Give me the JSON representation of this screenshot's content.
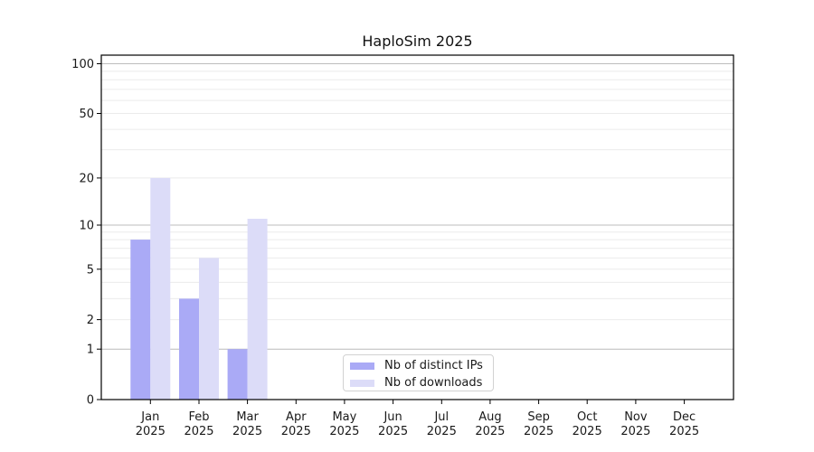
{
  "figure": {
    "title": "HaploSim 2025"
  },
  "chart_data": {
    "type": "bar",
    "title": "HaploSim 2025",
    "categories": [
      "Jan",
      "Feb",
      "Mar",
      "Apr",
      "May",
      "Jun",
      "Jul",
      "Aug",
      "Sep",
      "Oct",
      "Nov",
      "Dec"
    ],
    "year_label": "2025",
    "series": [
      {
        "name": "Nb of distinct IPs",
        "color": "#aaaaf6",
        "values": [
          8,
          3,
          1,
          0,
          0,
          0,
          0,
          0,
          0,
          0,
          0,
          0
        ]
      },
      {
        "name": "Nb of downloads",
        "color": "#dcdcf8",
        "values": [
          20,
          6,
          11,
          0,
          0,
          0,
          0,
          0,
          0,
          0,
          0,
          0
        ]
      }
    ],
    "xlabel": "",
    "ylabel": "",
    "yscale": "log1p",
    "yticks": [
      0,
      1,
      2,
      5,
      10,
      20,
      50,
      100
    ],
    "ylim": [
      0,
      114
    ],
    "grid": "horizontal",
    "legend_position": "bottom-center-inside",
    "colors": {
      "major_gridline": "#bcbcbc",
      "minor_gridline": "#ebebeb",
      "axis": "#000000",
      "tick_text": "#1a1a1a"
    }
  }
}
